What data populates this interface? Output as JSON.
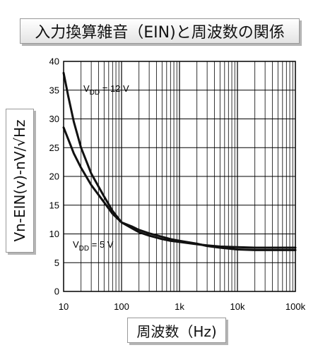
{
  "title": "入力換算雑音（EIN)と周波数の関係",
  "chart_data": {
    "type": "line",
    "xlabel": "周波数（Hz)",
    "ylabel": "Vn-EIN(v)-nV/√Hz",
    "xscale": "log",
    "xlim": [
      10,
      100000
    ],
    "ylim": [
      0,
      40
    ],
    "grid": true,
    "x_ticks": [
      10,
      100,
      1000,
      10000,
      100000
    ],
    "x_tick_labels": [
      "10",
      "100",
      "1k",
      "10k",
      "100k"
    ],
    "y_ticks": [
      0,
      5,
      10,
      15,
      20,
      25,
      30,
      35,
      40
    ],
    "y_tick_labels": [
      "0",
      "5",
      "10",
      "15",
      "20",
      "25",
      "30",
      "35",
      "40"
    ],
    "annotations": [
      {
        "text": "V",
        "sub": "DD",
        "rest": " = 12 V"
      },
      {
        "text": "V",
        "sub": "DD",
        "rest": " = 5 V"
      }
    ],
    "series": [
      {
        "x": [
          10,
          12,
          15,
          20,
          30,
          50,
          70,
          100,
          150,
          200,
          300,
          500,
          700,
          1000,
          2000,
          3000,
          5000,
          10000,
          20000,
          50000,
          100000
        ],
        "y": [
          38,
          34,
          29.5,
          25,
          20.5,
          16.5,
          14,
          12,
          11,
          10.3,
          9.7,
          9.1,
          8.8,
          8.6,
          8.2,
          8.0,
          7.8,
          7.7,
          7.6,
          7.6,
          7.6
        ]
      },
      {
        "x": [
          10,
          12,
          15,
          20,
          30,
          50,
          70,
          100,
          150,
          200,
          300,
          500,
          700,
          1000,
          2000,
          3000,
          5000,
          10000,
          20000,
          50000,
          100000
        ],
        "y": [
          28.5,
          26.5,
          24,
          21.5,
          18.5,
          15.5,
          13.5,
          12,
          11.3,
          10.7,
          10.1,
          9.5,
          9.1,
          8.8,
          8.3,
          7.9,
          7.6,
          7.3,
          7.2,
          7.2,
          7.2
        ]
      }
    ]
  }
}
